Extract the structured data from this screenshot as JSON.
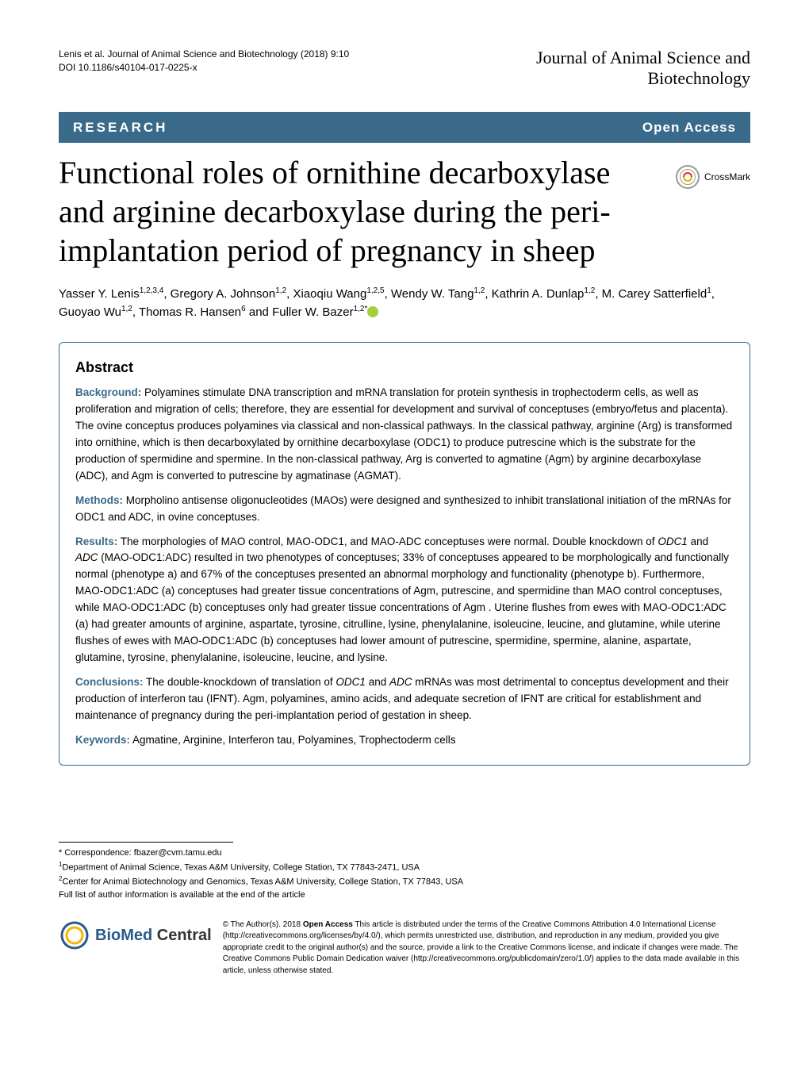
{
  "header": {
    "citation": "Lenis et al. Journal of Animal Science and Biotechnology  (2018) 9:10",
    "doi": "DOI 10.1186/s40104-017-0225-x",
    "journal_line1": "Journal of Animal Science and",
    "journal_line2": "Biotechnology"
  },
  "bar": {
    "left": "RESEARCH",
    "right": "Open Access"
  },
  "crossmark": "CrossMark",
  "title": "Functional roles of ornithine decarboxylase and arginine decarboxylase during the peri-implantation period of pregnancy in sheep",
  "authors_html": "Yasser Y. Lenis<sup>1,2,3,4</sup>, Gregory A. Johnson<sup>1,2</sup>, Xiaoqiu Wang<sup>1,2,5</sup>, Wendy W. Tang<sup>1,2</sup>, Kathrin A. Dunlap<sup>1,2</sup>, M. Carey Satterfield<sup>1</sup>, Guoyao Wu<sup>1,2</sup>, Thomas R. Hansen<sup>6</sup> and Fuller W. Bazer<sup>1,2*</sup>",
  "abstract": {
    "title": "Abstract",
    "background_label": "Background:",
    "background_text": " Polyamines stimulate DNA transcription and mRNA translation for protein synthesis in trophectoderm cells, as well as proliferation and migration of cells; therefore, they are essential for development and survival of conceptuses (embryo/fetus and placenta). The ovine conceptus produces polyamines via classical and non-classical pathways. In the classical pathway, arginine (Arg) is transformed into ornithine, which is then decarboxylated by ornithine decarboxylase (ODC1) to produce putrescine which is the substrate for the production of spermidine and spermine. In the non-classical pathway, Arg is converted to agmatine (Agm) by arginine decarboxylase (ADC), and Agm is converted to putrescine by agmatinase (AGMAT).",
    "methods_label": "Methods:",
    "methods_text": " Morpholino antisense oligonucleotides (MAOs) were designed and synthesized to inhibit translational initiation of the mRNAs for ODC1 and ADC, in ovine conceptuses.",
    "results_label": "Results:",
    "results_text_before": " The morphologies of MAO control, MAO-ODC1, and MAO-ADC conceptuses were normal. Double knockdown of ",
    "results_italic1": "ODC1",
    "results_text_mid1": " and ",
    "results_italic2": "ADC",
    "results_text_after": " (MAO-ODC1:ADC) resulted in two phenotypes of conceptuses; 33% of conceptuses appeared to be morphologically and functionally normal (phenotype a) and 67% of the conceptuses presented an abnormal morphology and functionality (phenotype b). Furthermore, MAO-ODC1:ADC (a) conceptuses had greater tissue concentrations of Agm, putrescine, and spermidine than MAO control conceptuses, while MAO-ODC1:ADC (b) conceptuses only had greater tissue concentrations of Agm . Uterine flushes from ewes with MAO-ODC1:ADC (a) had greater amounts of arginine, aspartate, tyrosine, citrulline, lysine, phenylalanine, isoleucine, leucine, and glutamine, while uterine flushes of ewes with MAO-ODC1:ADC (b) conceptuses had lower amount of putrescine, spermidine, spermine, alanine, aspartate, glutamine, tyrosine, phenylalanine, isoleucine, leucine, and lysine.",
    "conclusions_label": "Conclusions:",
    "conclusions_before": " The double-knockdown of translation of ",
    "conclusions_italic1": "ODC1",
    "conclusions_mid": " and ",
    "conclusions_italic2": "ADC",
    "conclusions_after": " mRNAs was most detrimental to conceptus development and their production of interferon tau (IFNT). Agm, polyamines, amino acids, and adequate secretion of IFNT are critical for establishment and maintenance of pregnancy during the peri-implantation period of gestation in sheep.",
    "keywords_label": "Keywords:",
    "keywords_text": " Agmatine, Arginine, Interferon tau, Polyamines, Trophectoderm cells"
  },
  "footer": {
    "correspondence": "* Correspondence: fbazer@cvm.tamu.edu",
    "affil1": "Department of Animal Science, Texas A&M University, College Station, TX 77843-2471, USA",
    "affil2": "Center for Animal Biotechnology and Genomics, Texas A&M University, College Station, TX 77843, USA",
    "full_list": "Full list of author information is available at the end of the article",
    "bmc_bio": "BioMed",
    "bmc_central": " Central",
    "oa_before": "© The Author(s). 2018 ",
    "oa_bold": "Open Access",
    "oa_after": " This article is distributed under the terms of the Creative Commons Attribution 4.0 International License (http://creativecommons.org/licenses/by/4.0/), which permits unrestricted use, distribution, and reproduction in any medium, provided you give appropriate credit to the original author(s) and the source, provide a link to the Creative Commons license, and indicate if changes were made. The Creative Commons Public Domain Dedication waiver (http://creativecommons.org/publicdomain/zero/1.0/) applies to the data made available in this article, unless otherwise stated."
  },
  "colors": {
    "bar_bg": "#3a6a8a",
    "label_color": "#3a6a8a",
    "orcid": "#a6ce39"
  }
}
